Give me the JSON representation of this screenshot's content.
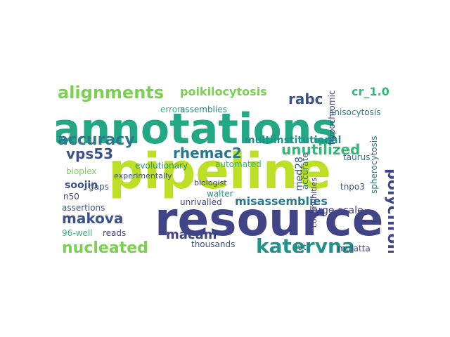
{
  "words": [
    {
      "text": "annotations",
      "color": "#22a884",
      "weight": 100
    },
    {
      "text": "pipeline",
      "color": "#bddf26",
      "weight": 90
    },
    {
      "text": "resource",
      "color": "#414487",
      "weight": 85
    },
    {
      "text": "alignments",
      "color": "#7ad151",
      "weight": 40
    },
    {
      "text": "accuracy",
      "color": "#2a788e",
      "weight": 40
    },
    {
      "text": "poikilocytosis",
      "color": "#7ad151",
      "weight": 25
    },
    {
      "text": "rabc",
      "color": "#3b528b",
      "weight": 30
    },
    {
      "text": "cr_1.0",
      "color": "#35b779",
      "weight": 28
    },
    {
      "text": "unutilized",
      "color": "#35b779",
      "weight": 30
    },
    {
      "text": "vps53",
      "color": "#3b528b",
      "weight": 30
    },
    {
      "text": "rhemac2",
      "color": "#2a788e",
      "weight": 30
    },
    {
      "text": "multiinstitutional",
      "color": "#21918c",
      "weight": 22
    },
    {
      "text": "soojin",
      "color": "#3b528b",
      "weight": 22
    },
    {
      "text": "macam",
      "color": "#414487",
      "weight": 28
    },
    {
      "text": "misassemblies",
      "color": "#2a788e",
      "weight": 26
    },
    {
      "text": "makova",
      "color": "#414487",
      "weight": 30
    },
    {
      "text": "kateryna",
      "color": "#3b528b",
      "weight": 30
    },
    {
      "text": "nucleated",
      "color": "#21918c",
      "weight": 38
    },
    {
      "text": "polychromasia",
      "color": "#7ad151",
      "weight": 38
    },
    {
      "text": "errors",
      "color": "#35b779",
      "weight": 18
    },
    {
      "text": "assemblies",
      "color": "#21918c",
      "weight": 18
    },
    {
      "text": "evolutionary",
      "color": "#21918c",
      "weight": 14
    },
    {
      "text": "bioplex",
      "color": "#7ad151",
      "weight": 14
    },
    {
      "text": "unrivalled",
      "color": "#414487",
      "weight": 16
    },
    {
      "text": "walter",
      "color": "#21918c",
      "weight": 16
    },
    {
      "text": "automated",
      "color": "#35b779",
      "weight": 16
    },
    {
      "text": "accurate",
      "color": "#2a788e",
      "weight": 14
    },
    {
      "text": "med28",
      "color": "#3b528b",
      "weight": 16
    },
    {
      "text": "large-scale",
      "color": "#414487",
      "weight": 16
    },
    {
      "text": "assertions",
      "color": "#3b528b",
      "weight": 14
    },
    {
      "text": "96-well",
      "color": "#35b779",
      "weight": 16
    },
    {
      "text": "reads",
      "color": "#414487",
      "weight": 16
    },
    {
      "text": "thousands",
      "color": "#3b528b",
      "weight": 16
    },
    {
      "text": "lutz",
      "color": "#2a788e",
      "weight": 14
    },
    {
      "text": "mulatta",
      "color": "#414487",
      "weight": 14
    },
    {
      "text": "tnpo3",
      "color": "#3b528b",
      "weight": 14
    },
    {
      "text": "spherocytosis",
      "color": "#2a788e",
      "weight": 14
    },
    {
      "text": "gaps",
      "color": "#3b528b",
      "weight": 14
    },
    {
      "text": "n50",
      "color": "#414487",
      "weight": 14
    },
    {
      "text": "hypochromic",
      "color": "#414487",
      "weight": 13
    },
    {
      "text": "anisocytosis",
      "color": "#2a788e",
      "weight": 13
    },
    {
      "text": "taurus",
      "color": "#2a788e",
      "weight": 13
    },
    {
      "text": "communities",
      "color": "#414487",
      "weight": 12
    },
    {
      "text": "biologist",
      "color": "#414487",
      "weight": 12
    },
    {
      "text": "experimentally",
      "color": "#3b528b",
      "weight": 12
    }
  ]
}
